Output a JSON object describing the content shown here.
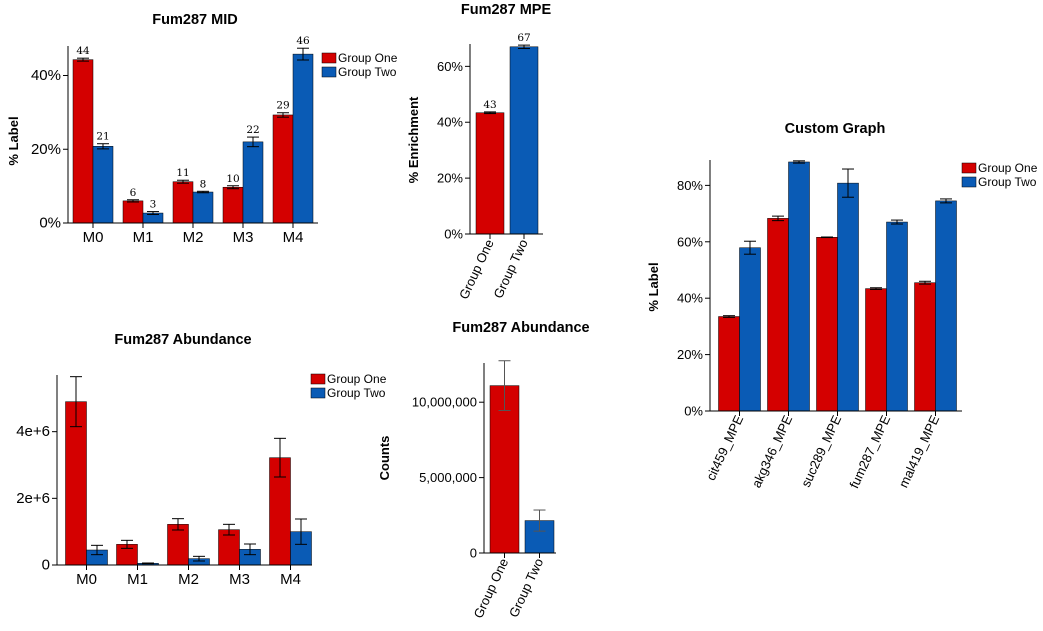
{
  "colors": {
    "group_one": "#d40000",
    "group_two": "#0a5bb5",
    "axis": "#000000"
  },
  "chart_data": [
    {
      "id": "mid",
      "type": "bar",
      "title": "Fum287 MID",
      "ylabel": "% Label",
      "xlabel": "",
      "ylim": [
        0,
        48
      ],
      "yticks": [
        0,
        20,
        40
      ],
      "ytick_labels": [
        "0%",
        "20%",
        "40%"
      ],
      "categories": [
        "M0",
        "M1",
        "M2",
        "M3",
        "M4"
      ],
      "legend": "top-right",
      "series": [
        {
          "name": "Group One",
          "values": [
            44.3,
            6,
            11.2,
            9.7,
            29.3
          ],
          "errors": [
            0.4,
            0.3,
            0.4,
            0.4,
            0.6
          ],
          "labels": [
            "44",
            "6",
            "11",
            "10",
            "29"
          ]
        },
        {
          "name": "Group Two",
          "values": [
            20.8,
            2.7,
            8.4,
            22,
            45.8
          ],
          "errors": [
            0.7,
            0.4,
            0.2,
            1.3,
            1.6
          ],
          "labels": [
            "21",
            "3",
            "8",
            "22",
            "46"
          ]
        }
      ]
    },
    {
      "id": "mpe",
      "type": "bar",
      "title": "Fum287 MPE",
      "ylabel": "% Enrichment",
      "xlabel": "",
      "ylim": [
        0,
        68
      ],
      "yticks": [
        0,
        20,
        40,
        60
      ],
      "ytick_labels": [
        "0%",
        "20%",
        "40%",
        "60%"
      ],
      "categories": [
        "Group One",
        "Group Two"
      ],
      "series": [
        {
          "name": "",
          "values": [
            43.4,
            67
          ],
          "errors": [
            0.3,
            0.6
          ],
          "labels": [
            "43",
            "67"
          ]
        }
      ]
    },
    {
      "id": "custom",
      "type": "bar",
      "title": "Custom Graph",
      "ylabel": "% Label",
      "xlabel": "",
      "ylim": [
        0,
        89
      ],
      "yticks": [
        0,
        20,
        40,
        60,
        80
      ],
      "ytick_labels": [
        "0%",
        "20%",
        "40%",
        "60%",
        "80%"
      ],
      "categories": [
        "cit459_MPE",
        "akg346_MPE",
        "suc289_MPE",
        "fum287_MPE",
        "mal419_MPE"
      ],
      "legend": "top-right",
      "series": [
        {
          "name": "Group One",
          "values": [
            33.5,
            68.3,
            61.6,
            43.4,
            45.5
          ],
          "errors": [
            0.3,
            0.8,
            0.1,
            0.3,
            0.5
          ]
        },
        {
          "name": "Group Two",
          "values": [
            57.9,
            88.3,
            80.8,
            67,
            74.5
          ],
          "errors": [
            2.3,
            0.4,
            5,
            0.7,
            0.7
          ]
        }
      ]
    },
    {
      "id": "abund1",
      "type": "bar",
      "title": "Fum287 Abundance",
      "ylabel": "",
      "xlabel": "",
      "ylim": [
        0,
        5700000
      ],
      "yticks": [
        0,
        2000000,
        4000000
      ],
      "ytick_labels": [
        "0",
        "2e+6",
        "4e+6"
      ],
      "categories": [
        "M0",
        "M1",
        "M2",
        "M3",
        "M4"
      ],
      "legend": "top-right",
      "series": [
        {
          "name": "Group One",
          "values": [
            4900000,
            620000,
            1220000,
            1060000,
            3220000
          ],
          "errors": [
            750000,
            120000,
            170000,
            160000,
            580000
          ]
        },
        {
          "name": "Group Two",
          "values": [
            450000,
            50000,
            190000,
            470000,
            1000000
          ],
          "errors": [
            140000,
            10000,
            70000,
            160000,
            380000
          ]
        }
      ]
    },
    {
      "id": "abund2",
      "type": "bar",
      "title": "Fum287 Abundance",
      "ylabel": "Counts",
      "xlabel": "",
      "ylim": [
        0,
        12600000
      ],
      "yticks": [
        0,
        5000000,
        10000000
      ],
      "ytick_labels": [
        "0",
        "5,000,000",
        "10,000,000"
      ],
      "categories": [
        "Group One",
        "Group Two"
      ],
      "series": [
        {
          "name": "",
          "values": [
            11100000,
            2150000
          ],
          "errors": [
            1650000,
            700000
          ]
        }
      ]
    }
  ]
}
